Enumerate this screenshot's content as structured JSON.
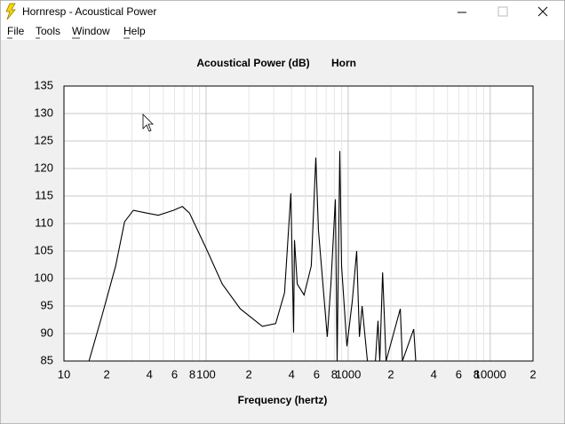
{
  "window": {
    "title": "Hornresp - Acoustical Power"
  },
  "menu": [
    "File",
    "Tools",
    "Window",
    "Help"
  ],
  "chart_data": {
    "type": "line",
    "title": "Acoustical Power (dB)",
    "subtitle": "Horn",
    "xlabel": "Frequency (hertz)",
    "log_x": true,
    "grid": true,
    "color": "#000000",
    "xlim": [
      10,
      20000
    ],
    "ylim": [
      85,
      135
    ],
    "yticks": [
      85,
      90,
      95,
      100,
      105,
      110,
      115,
      120,
      125,
      130,
      135
    ],
    "xticks": [
      10,
      {
        "value": 20,
        "label": "2"
      },
      {
        "value": 40,
        "label": "4"
      },
      {
        "value": 60,
        "label": "6"
      },
      {
        "value": 80,
        "label": "8"
      },
      100,
      {
        "value": 200,
        "label": "2"
      },
      {
        "value": 400,
        "label": "4"
      },
      {
        "value": 600,
        "label": "6"
      },
      {
        "value": 800,
        "label": "8"
      },
      1000,
      {
        "value": 2000,
        "label": "2"
      },
      {
        "value": 4000,
        "label": "4"
      },
      {
        "value": 6000,
        "label": "6"
      },
      {
        "value": 8000,
        "label": "8"
      },
      10000,
      {
        "value": 20000,
        "label": "2"
      }
    ],
    "xminor_ticks": [
      30,
      50,
      70,
      90,
      300,
      500,
      700,
      900,
      3000,
      5000,
      7000,
      9000
    ],
    "x": [
      15.0,
      18.6,
      23.1,
      26.7,
      30.8,
      38.2,
      46.1,
      58.9,
      68.1,
      76.4,
      100,
      130,
      174,
      249,
      309,
      357,
      395,
      413,
      419,
      438,
      490,
      550,
      592,
      618,
      713,
      756,
      813,
      836,
      873,
      899,
      980,
      1069,
      1149,
      1200,
      1253,
      1366,
      1555,
      1623,
      1670,
      1747,
      1849,
      2328,
      2410,
      2893,
      2990
    ],
    "y": [
      85,
      93.4,
      102.3,
      110.3,
      112.4,
      111.9,
      111.5,
      112.4,
      113.1,
      111.9,
      105.5,
      99.0,
      94.5,
      91.3,
      91.8,
      97.4,
      115.5,
      90.2,
      107,
      99,
      97,
      102.3,
      122,
      108.7,
      89.4,
      99,
      114.4,
      85,
      123.2,
      102.3,
      87.7,
      95.8,
      105,
      89.4,
      95,
      85,
      85,
      92.3,
      85,
      101.1,
      85,
      94.5,
      85,
      90.8,
      85
    ]
  }
}
